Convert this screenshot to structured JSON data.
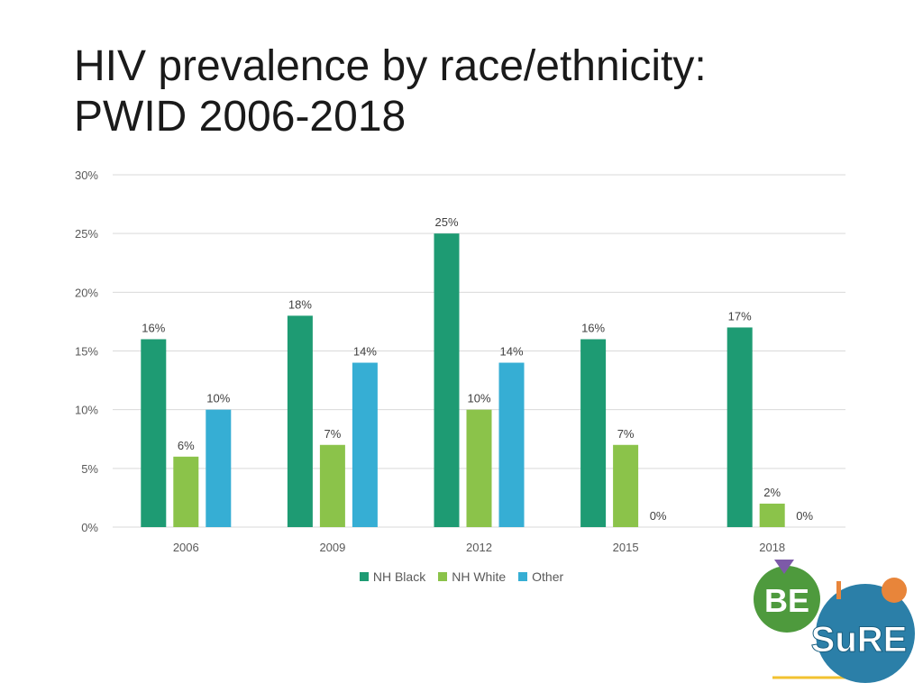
{
  "slide": {
    "title_line1": "HIV prevalence by race/ethnicity:",
    "title_line2": "PWID 2006-2018"
  },
  "colors": {
    "nh_black": "#1e9b73",
    "nh_white": "#8bc34a",
    "other": "#36aed4",
    "grid": "#d9d9d9"
  },
  "chart_data": {
    "type": "bar",
    "title": "",
    "xlabel": "",
    "ylabel": "",
    "categories": [
      "2006",
      "2009",
      "2012",
      "2015",
      "2018"
    ],
    "ylim": [
      0,
      30
    ],
    "yticks": [
      0,
      5,
      10,
      15,
      20,
      25,
      30
    ],
    "ytick_labels": [
      "0%",
      "5%",
      "10%",
      "15%",
      "20%",
      "25%",
      "30%"
    ],
    "series": [
      {
        "name": "NH Black",
        "values": [
          16,
          18,
          25,
          16,
          17
        ],
        "labels": [
          "16%",
          "18%",
          "25%",
          "16%",
          "17%"
        ]
      },
      {
        "name": "NH White",
        "values": [
          6,
          7,
          10,
          7,
          2
        ],
        "labels": [
          "6%",
          "7%",
          "10%",
          "7%",
          "2%"
        ]
      },
      {
        "name": "Other",
        "values": [
          10,
          14,
          14,
          0,
          0
        ],
        "labels": [
          "10%",
          "14%",
          "14%",
          "0%",
          "0%"
        ]
      }
    ],
    "legend": "bottom-center",
    "grid": true
  },
  "logo": {
    "word_left": "BE",
    "word_right": "SuRE"
  }
}
